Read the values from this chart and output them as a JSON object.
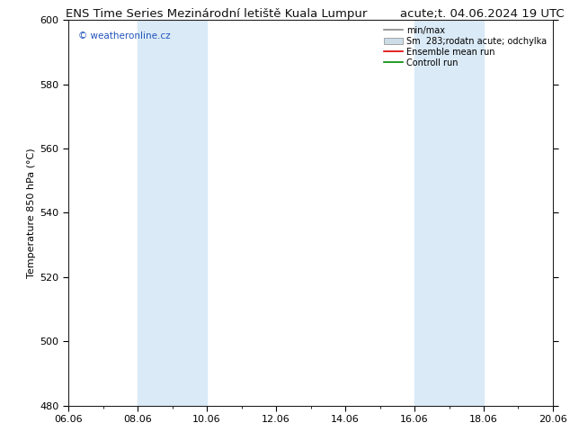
{
  "title_left": "ENS Time Series Mezinárodní letiště Kuala Lumpur",
  "title_right": "acute;t. 04.06.2024 19 UTC",
  "ylabel": "Temperature 850 hPa (°C)",
  "ylim": [
    480,
    600
  ],
  "yticks": [
    480,
    500,
    520,
    540,
    560,
    580,
    600
  ],
  "xlim_num": [
    0,
    14
  ],
  "xtick_labels": [
    "06.06",
    "08.06",
    "10.06",
    "12.06",
    "14.06",
    "16.06",
    "18.06",
    "20.06"
  ],
  "xtick_positions": [
    0,
    2,
    4,
    6,
    8,
    10,
    12,
    14
  ],
  "shaded_bands": [
    {
      "xmin": 2,
      "xmax": 4
    },
    {
      "xmin": 10,
      "xmax": 12
    }
  ],
  "shade_color": "#daeaf7",
  "watermark": "© weatheronline.cz",
  "watermark_color": "#2255bb",
  "legend_items": [
    {
      "label": "min/max",
      "color": "#888888",
      "lw": 1.2,
      "type": "line"
    },
    {
      "label": "Sm  283;rodatn acute; odchylka",
      "color": "#ccdde8",
      "type": "patch"
    },
    {
      "label": "Ensemble mean run",
      "color": "#dd0000",
      "lw": 1.2,
      "type": "line"
    },
    {
      "label": "Controll run",
      "color": "#008800",
      "lw": 1.2,
      "type": "line"
    }
  ],
  "bg_color": "#ffffff",
  "title_fontsize": 9.5,
  "tick_fontsize": 8,
  "ylabel_fontsize": 8,
  "legend_fontsize": 7,
  "watermark_fontsize": 7.5
}
